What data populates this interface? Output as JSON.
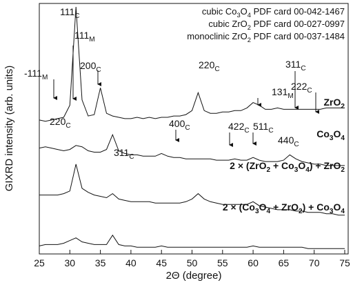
{
  "chart_data": {
    "type": "line",
    "x_label": "2Θ (degree)",
    "y_label": "GIXRD intensity (arb. units)",
    "xlim": [
      25,
      75
    ],
    "xticks": [
      25,
      30,
      35,
      40,
      45,
      50,
      55,
      60,
      65,
      70,
      75
    ],
    "ylim": [
      6.5,
      100
    ],
    "legend_lines": [
      "cubic Co3O4 PDF card 00-042-1467",
      "cubic ZrO2 PDF card 00-027-0997",
      "monoclinic ZrO2 PDF card 00-037-1484"
    ],
    "x": [
      25,
      26,
      27,
      28,
      29,
      30,
      31,
      32,
      33,
      34,
      35,
      36,
      37,
      38,
      39,
      40,
      41,
      42,
      43,
      44,
      45,
      46,
      47,
      48,
      49,
      50,
      51,
      52,
      53,
      54,
      55,
      56,
      57,
      58,
      59,
      60,
      61,
      62,
      63,
      64,
      65,
      66,
      67,
      68,
      69,
      70,
      71,
      72,
      73,
      74,
      75
    ],
    "series": [
      {
        "name": "ZrO2",
        "color": "#111111",
        "values": [
          56.5,
          56,
          56.5,
          57,
          57.5,
          62,
          98.7,
          64,
          58,
          58.5,
          68.5,
          59,
          58,
          57.5,
          57,
          57,
          57.5,
          57,
          57.5,
          57,
          57.5,
          57.5,
          58,
          58,
          58.5,
          60,
          66.7,
          60,
          59,
          59,
          59.5,
          59.5,
          60,
          60,
          61,
          63,
          62,
          60.5,
          60.5,
          61,
          60.5,
          60.5,
          60.5,
          60.5,
          60.5,
          60.5,
          60.5,
          61,
          61,
          61,
          61
        ]
      },
      {
        "name": "Co3O4",
        "color": "#111111",
        "values": [
          46,
          46.5,
          46,
          45.5,
          45,
          45.5,
          47,
          46.5,
          45,
          44.5,
          44.5,
          45.5,
          51,
          45,
          44,
          43.5,
          43.5,
          43,
          43,
          43,
          44,
          43,
          42.5,
          42.5,
          42,
          42,
          42,
          42,
          42,
          41.5,
          41.5,
          41.5,
          42,
          41.5,
          41.5,
          42.5,
          41.5,
          41,
          41,
          41,
          41.5,
          43.5,
          42,
          41,
          40.5,
          40,
          40,
          39.5,
          39.5,
          39.5,
          39.5
        ]
      },
      {
        "name": "2 × (ZrO2 + Co3O4) + ZrO2",
        "color": "#111111",
        "values": [
          28.5,
          28.5,
          28.5,
          28.5,
          29,
          30,
          40,
          31,
          29.5,
          28.5,
          28,
          27.5,
          29,
          27,
          26.5,
          26,
          26,
          26,
          26,
          25.5,
          25.5,
          25.5,
          25.5,
          25.5,
          26,
          27,
          29,
          27,
          26,
          25.5,
          25,
          25,
          25,
          25,
          25,
          26,
          24.5,
          24,
          23.5,
          23,
          23,
          23,
          22.5,
          22.5,
          22,
          22,
          22,
          21.5,
          21.5,
          21,
          21
        ]
      },
      {
        "name": "2 × (Co3O4 + ZrO2) + Co3O4",
        "color": "#111111",
        "values": [
          9.5,
          10,
          10,
          10,
          10.5,
          11.5,
          12.5,
          11,
          10.5,
          10,
          10,
          10,
          13.5,
          10,
          9.5,
          9.5,
          9,
          9,
          9,
          9,
          9.5,
          9,
          9,
          9,
          9,
          9,
          9,
          9,
          9,
          9,
          9,
          9,
          9,
          9,
          9,
          9.5,
          9,
          9,
          9,
          9,
          9,
          9,
          9,
          9,
          8.5,
          8.5,
          8.5,
          8.5,
          8.5,
          8.5,
          8.5
        ]
      }
    ],
    "annotations": [
      {
        "text": "111",
        "sub": "C"
      },
      {
        "text": "-111",
        "sub": "M"
      },
      {
        "text": "111",
        "sub": "M"
      },
      {
        "text": "200",
        "sub": "C"
      },
      {
        "text": "220",
        "sub": "C"
      },
      {
        "text": "131",
        "sub": "M"
      },
      {
        "text": "311",
        "sub": "C"
      },
      {
        "text": "222",
        "sub": "C"
      },
      {
        "text": "220",
        "sub": "C"
      },
      {
        "text": "311",
        "sub": "C"
      },
      {
        "text": "400",
        "sub": "C"
      },
      {
        "text": "422",
        "sub": "C"
      },
      {
        "text": "511",
        "sub": "C"
      },
      {
        "text": "440",
        "sub": "C"
      }
    ]
  }
}
